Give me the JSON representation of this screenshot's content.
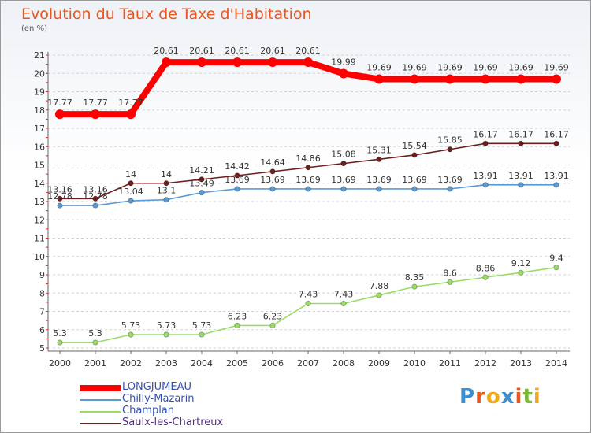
{
  "chart_data": {
    "type": "line",
    "title": "Evolution du Taux de Taxe d'Habitation",
    "subtitle": "(en %)",
    "xlabel": "",
    "ylabel": "",
    "categories": [
      "2000",
      "2001",
      "2002",
      "2003",
      "2004",
      "2005",
      "2006",
      "2007",
      "2008",
      "2009",
      "2010",
      "2011",
      "2012",
      "2013",
      "2014"
    ],
    "ylim": [
      5,
      21
    ],
    "yticks": [
      5,
      6,
      7,
      8,
      9,
      10,
      11,
      12,
      13,
      14,
      15,
      16,
      17,
      18,
      19,
      20,
      21
    ],
    "grid": true,
    "legend_position": "bottom-left",
    "series": [
      {
        "name": "LONGJUMEAU",
        "color": "#ff0000",
        "labels": [
          "17.77",
          "17.77",
          "17.77",
          "20.61",
          "20.61",
          "20.61",
          "20.61",
          "20.61",
          "19.99",
          "19.69",
          "19.69",
          "19.69",
          "19.69",
          "19.69",
          "19.69"
        ],
        "values": [
          17.77,
          17.77,
          17.77,
          20.61,
          20.61,
          20.61,
          20.61,
          20.61,
          19.99,
          19.69,
          19.69,
          19.69,
          19.69,
          19.69,
          19.69
        ]
      },
      {
        "name": "Chilly-Mazarin",
        "color": "#5b9bd5",
        "labels": [
          "12.78",
          "12.78",
          "13.04",
          "13.1",
          "13.49",
          "13.69",
          "13.69",
          "13.69",
          "13.69",
          "13.69",
          "13.69",
          "13.69",
          "13.91",
          "13.91",
          "13.91"
        ],
        "values": [
          12.78,
          12.78,
          13.04,
          13.1,
          13.49,
          13.69,
          13.69,
          13.69,
          13.69,
          13.69,
          13.69,
          13.69,
          13.91,
          13.91,
          13.91
        ]
      },
      {
        "name": "Champlan",
        "color": "#99dd66",
        "labels": [
          "5.3",
          "5.3",
          "5.73",
          "5.73",
          "5.73",
          "6.23",
          "6.23",
          "7.43",
          "7.43",
          "7.88",
          "8.35",
          "8.6",
          "8.86",
          "9.12",
          "9.4"
        ],
        "values": [
          5.3,
          5.3,
          5.73,
          5.73,
          5.73,
          6.23,
          6.23,
          7.43,
          7.43,
          7.88,
          8.35,
          8.6,
          8.86,
          9.12,
          9.4
        ]
      },
      {
        "name": "Saulx-les-Chartreux",
        "color": "#6b1f1f",
        "labels": [
          "13.16",
          "13.16",
          "14",
          "14",
          "14.21",
          "14.42",
          "14.64",
          "14.86",
          "15.08",
          "15.31",
          "15.54",
          "15.85",
          "16.17",
          "16.17",
          "16.17"
        ],
        "values": [
          13.16,
          13.16,
          14,
          14,
          14.21,
          14.42,
          14.64,
          14.86,
          15.08,
          15.31,
          15.54,
          15.85,
          16.17,
          16.17,
          16.17
        ]
      }
    ]
  },
  "brand": {
    "letters": [
      "P",
      "r",
      "o",
      "x",
      "i",
      "t",
      "i"
    ],
    "colors": [
      "#3b8fd0",
      "#e8551e",
      "#f2a81c",
      "#3b8fd0",
      "#e8551e",
      "#79b83a",
      "#f2a81c"
    ]
  }
}
